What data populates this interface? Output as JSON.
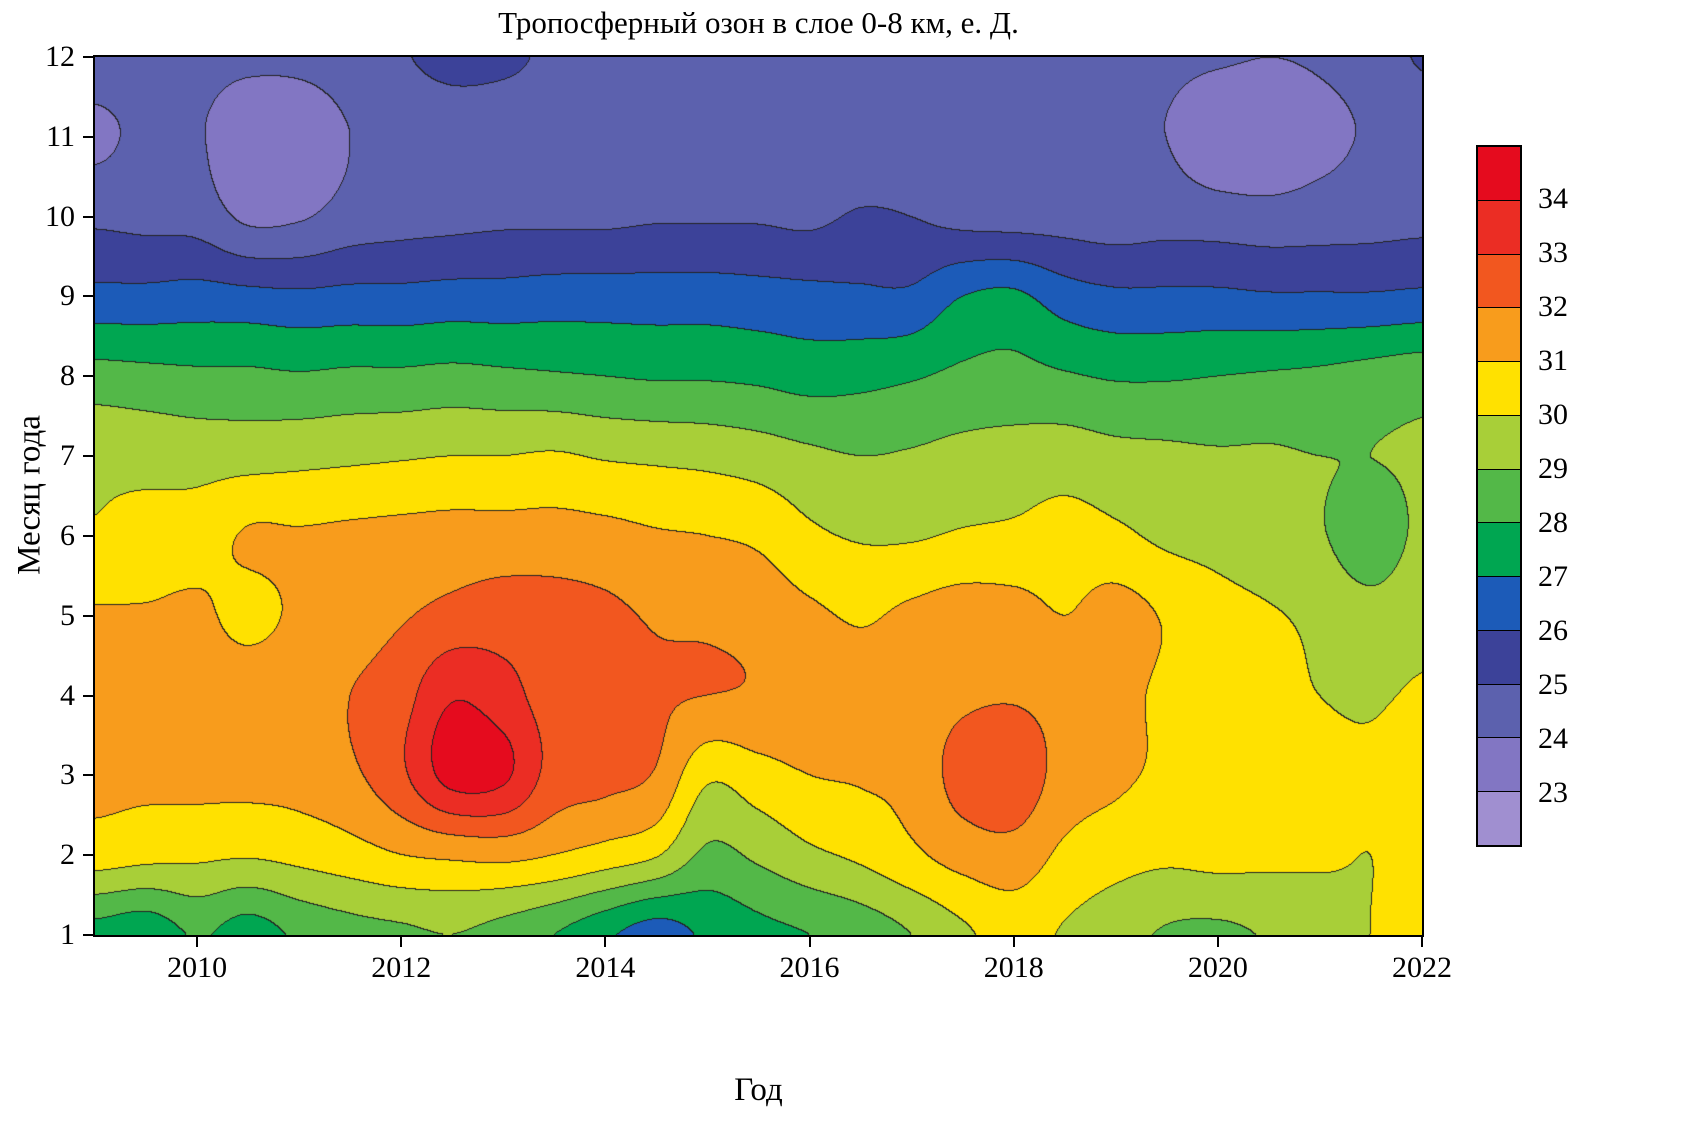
{
  "chart_data": {
    "type": "contour",
    "title": "Тропосферный озон в слое 0-8 км, е. Д.",
    "xlabel": "Год",
    "ylabel": "Месяц года",
    "x_range": [
      2009,
      2022
    ],
    "y_range": [
      1,
      12
    ],
    "grid_on": false,
    "legend_position": "right-colorbar",
    "x_ticks": [
      {
        "value": 2010,
        "label": "2010"
      },
      {
        "value": 2012,
        "label": "2012"
      },
      {
        "value": 2014,
        "label": "2014"
      },
      {
        "value": 2016,
        "label": "2016"
      },
      {
        "value": 2018,
        "label": "2018"
      },
      {
        "value": 2020,
        "label": "2020"
      },
      {
        "value": 2022,
        "label": "2022"
      }
    ],
    "y_ticks": [
      {
        "value": 1,
        "label": "1"
      },
      {
        "value": 2,
        "label": "2"
      },
      {
        "value": 3,
        "label": "3"
      },
      {
        "value": 4,
        "label": "4"
      },
      {
        "value": 5,
        "label": "5"
      },
      {
        "value": 6,
        "label": "6"
      },
      {
        "value": 7,
        "label": "7"
      },
      {
        "value": 8,
        "label": "8"
      },
      {
        "value": 9,
        "label": "9"
      },
      {
        "value": 10,
        "label": "10"
      },
      {
        "value": 11,
        "label": "11"
      },
      {
        "value": 12,
        "label": "12"
      }
    ],
    "colorbar_labels": [
      {
        "value": 23,
        "label": "23"
      },
      {
        "value": 24,
        "label": "24"
      },
      {
        "value": 25,
        "label": "25"
      },
      {
        "value": 26,
        "label": "26"
      },
      {
        "value": 27,
        "label": "27"
      },
      {
        "value": 28,
        "label": "28"
      },
      {
        "value": 29,
        "label": "29"
      },
      {
        "value": 30,
        "label": "30"
      },
      {
        "value": 31,
        "label": "31"
      },
      {
        "value": 32,
        "label": "32"
      },
      {
        "value": 33,
        "label": "33"
      },
      {
        "value": 34,
        "label": "34"
      }
    ],
    "levels": [
      {
        "min": 22,
        "max": 23,
        "color": "#a08fd0"
      },
      {
        "min": 23,
        "max": 24,
        "color": "#8276c3"
      },
      {
        "min": 24,
        "max": 25,
        "color": "#5c61ae"
      },
      {
        "min": 25,
        "max": 26,
        "color": "#3c4299"
      },
      {
        "min": 26,
        "max": 27,
        "color": "#1c5bb8"
      },
      {
        "min": 27,
        "max": 28,
        "color": "#00a651"
      },
      {
        "min": 28,
        "max": 29,
        "color": "#53b848"
      },
      {
        "min": 29,
        "max": 30,
        "color": "#a8cf38"
      },
      {
        "min": 30,
        "max": 31,
        "color": "#ffe100"
      },
      {
        "min": 31,
        "max": 32,
        "color": "#f89c1c"
      },
      {
        "min": 32,
        "max": 33,
        "color": "#f2571f"
      },
      {
        "min": 33,
        "max": 34,
        "color": "#eb2d24"
      },
      {
        "min": 34,
        "max": 35,
        "color": "#e50b1e"
      }
    ],
    "contour_line_color": "#232323",
    "grid": {
      "years": [
        2009,
        2009.5,
        2010,
        2010.5,
        2011,
        2011.5,
        2012,
        2012.5,
        2013,
        2013.5,
        2014,
        2014.5,
        2015,
        2015.5,
        2016,
        2016.5,
        2017,
        2017.5,
        2018,
        2018.5,
        2019,
        2019.5,
        2020,
        2020.5,
        2021,
        2021.5,
        2022
      ],
      "months": [
        1,
        2,
        3,
        4,
        5,
        6,
        7,
        8,
        9,
        10,
        11,
        12
      ],
      "values": [
        [
          27.6,
          27.3,
          28.1,
          27.5,
          28.2,
          28.6,
          28.8,
          29.0,
          28.6,
          28.0,
          27.2,
          26.5,
          27.2,
          27.7,
          28.0,
          28.4,
          29.0,
          29.8,
          30.4,
          29.9,
          29.4,
          28.9,
          28.8,
          29.1,
          29.6,
          30.0,
          30.2
        ],
        [
          30.5,
          30.3,
          30.2,
          30.1,
          30.3,
          30.6,
          31.0,
          31.2,
          31.3,
          31.0,
          30.6,
          30.1,
          28.8,
          29.2,
          29.8,
          30.2,
          30.8,
          31.4,
          31.6,
          30.8,
          30.4,
          30.2,
          30.3,
          30.2,
          30.1,
          30.0,
          30.2
        ],
        [
          31.2,
          31.2,
          31.3,
          31.3,
          31.4,
          31.8,
          32.8,
          34.4,
          34.2,
          32.6,
          32.3,
          31.9,
          30.2,
          30.6,
          31.0,
          31.1,
          31.3,
          32.4,
          32.7,
          31.6,
          31.2,
          30.8,
          30.5,
          30.3,
          30.2,
          30.1,
          30.4
        ],
        [
          31.3,
          31.4,
          31.5,
          31.6,
          31.7,
          32.0,
          32.6,
          33.9,
          33.4,
          32.5,
          32.2,
          32.1,
          32.0,
          31.9,
          31.7,
          31.3,
          31.4,
          31.8,
          31.9,
          31.6,
          31.3,
          30.8,
          30.4,
          30.2,
          30.0,
          29.9,
          30.1
        ],
        [
          31.1,
          31.1,
          31.2,
          30.7,
          31.2,
          31.5,
          31.9,
          32.3,
          32.5,
          32.4,
          32.2,
          31.9,
          31.8,
          31.6,
          31.2,
          30.9,
          31.2,
          31.5,
          31.4,
          31.0,
          31.4,
          30.9,
          30.4,
          30.1,
          29.8,
          29.4,
          29.7
        ],
        [
          30.1,
          30.3,
          30.5,
          31.1,
          31.1,
          31.2,
          31.3,
          31.4,
          31.4,
          31.4,
          31.3,
          31.1,
          31.0,
          30.8,
          30.2,
          29.9,
          29.9,
          30.1,
          30.2,
          30.4,
          30.2,
          29.8,
          29.6,
          29.3,
          29.1,
          28.4,
          29.2
        ],
        [
          29.8,
          29.7,
          29.6,
          29.6,
          29.7,
          29.8,
          29.9,
          30.0,
          30.0,
          30.1,
          29.9,
          29.8,
          29.7,
          29.5,
          29.2,
          29.0,
          29.1,
          29.3,
          29.4,
          29.5,
          29.3,
          29.2,
          29.1,
          29.1,
          29.0,
          29.0,
          29.1
        ],
        [
          28.4,
          28.3,
          28.2,
          28.2,
          28.1,
          28.2,
          28.2,
          28.3,
          28.2,
          28.1,
          28.0,
          27.9,
          27.9,
          27.8,
          27.6,
          27.7,
          27.9,
          28.2,
          28.3,
          28.1,
          27.9,
          27.9,
          28.0,
          28.1,
          28.2,
          28.4,
          28.6
        ],
        [
          26.3,
          26.3,
          26.4,
          26.3,
          26.2,
          26.3,
          26.3,
          26.4,
          26.4,
          26.5,
          26.5,
          26.5,
          26.5,
          26.4,
          26.3,
          26.2,
          26.2,
          27.0,
          27.2,
          26.5,
          26.2,
          26.2,
          26.2,
          26.1,
          26.1,
          26.1,
          26.2
        ],
        [
          24.8,
          24.7,
          24.6,
          23.8,
          23.9,
          24.4,
          24.6,
          24.7,
          24.8,
          24.8,
          24.8,
          24.9,
          24.9,
          24.9,
          24.8,
          25.1,
          25.0,
          24.7,
          24.6,
          24.6,
          24.5,
          24.6,
          24.5,
          24.4,
          24.5,
          24.6,
          24.7
        ],
        [
          23.8,
          24.2,
          24.1,
          23.3,
          23.4,
          24.0,
          24.3,
          24.4,
          24.4,
          24.5,
          24.5,
          24.5,
          24.5,
          24.5,
          24.4,
          24.4,
          24.4,
          24.3,
          24.3,
          24.3,
          24.2,
          24.0,
          23.3,
          23.2,
          23.7,
          24.1,
          24.3
        ],
        [
          24.5,
          24.4,
          24.3,
          24.2,
          24.2,
          24.4,
          24.9,
          25.3,
          25.2,
          24.8,
          24.5,
          24.4,
          24.4,
          24.4,
          24.3,
          24.3,
          24.3,
          24.4,
          24.4,
          24.4,
          24.3,
          24.2,
          24.1,
          24.0,
          24.1,
          24.4,
          25.1
        ]
      ]
    }
  }
}
